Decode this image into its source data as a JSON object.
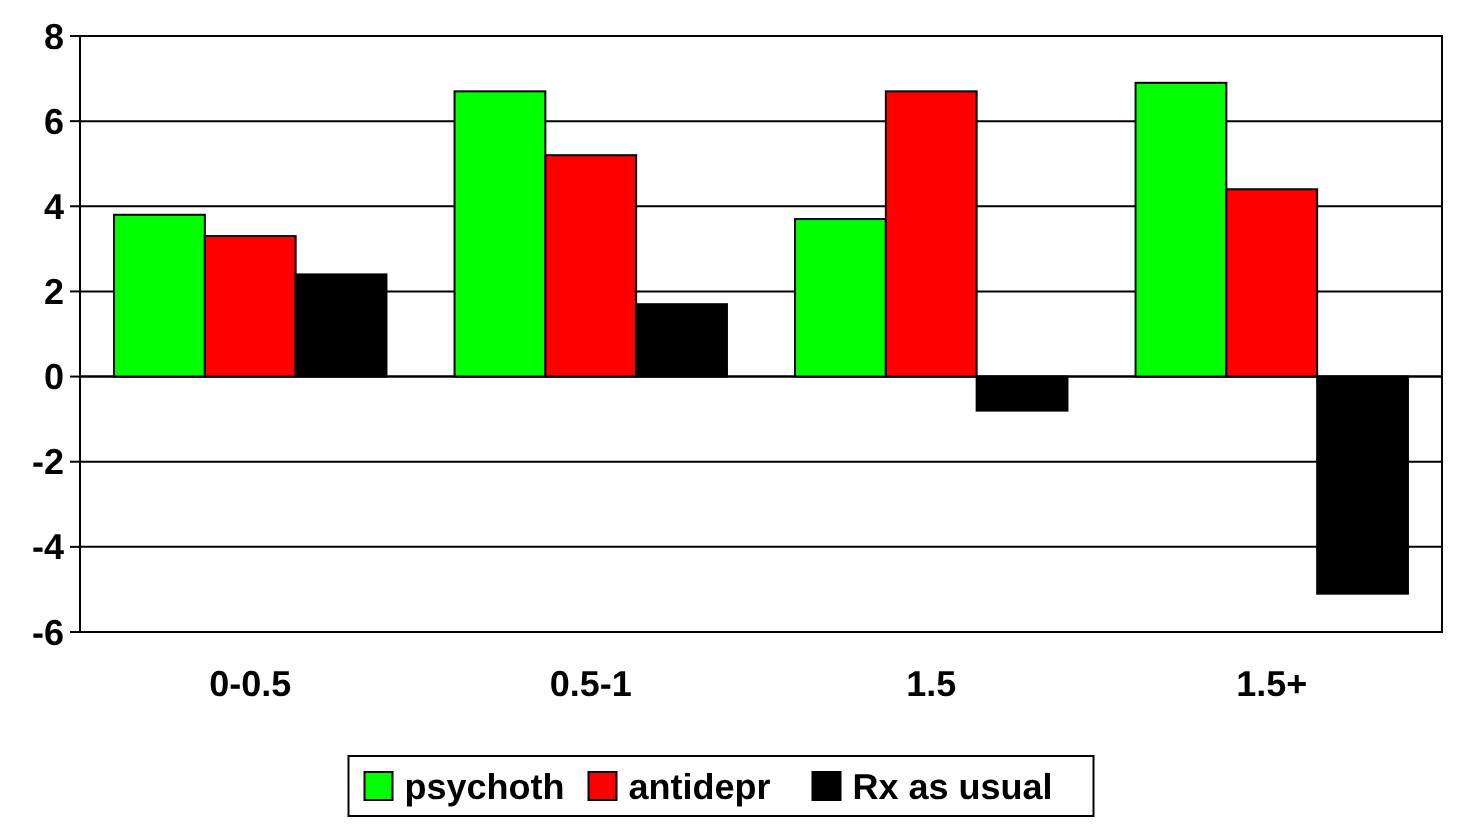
{
  "chart_data": {
    "type": "bar",
    "categories": [
      "0-0.5",
      "0.5-1",
      "1.5",
      "1.5+"
    ],
    "series": [
      {
        "name": "psychoth",
        "color": "#00ff00",
        "values": [
          3.8,
          6.7,
          3.7,
          6.9
        ]
      },
      {
        "name": "antidepr",
        "color": "#ff0000",
        "values": [
          3.3,
          5.2,
          6.7,
          4.4
        ]
      },
      {
        "name": "Rx as usual",
        "color": "#000000",
        "values": [
          2.4,
          1.7,
          -0.8,
          -5.1
        ]
      }
    ],
    "ylim": [
      -6,
      8
    ],
    "yticks": [
      -6,
      -4,
      -2,
      0,
      2,
      4,
      6,
      8
    ],
    "grid": "y",
    "legend": "bottom"
  }
}
